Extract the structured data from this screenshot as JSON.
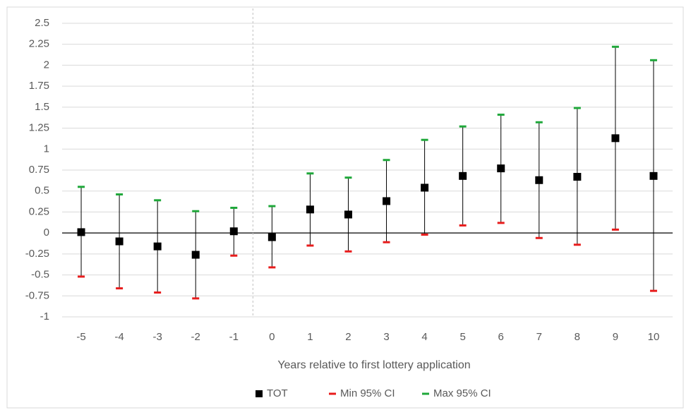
{
  "chart_data": {
    "type": "errorbar",
    "x_label": "Years relative to first lottery application",
    "categories": [
      "-5",
      "-4",
      "-3",
      "-2",
      "-1",
      "0",
      "1",
      "2",
      "3",
      "4",
      "5",
      "6",
      "7",
      "8",
      "9",
      "10"
    ],
    "series": [
      {
        "name": "TOT",
        "color": "#000000",
        "values": [
          0.01,
          -0.1,
          -0.16,
          -0.26,
          0.02,
          -0.05,
          0.28,
          0.22,
          0.38,
          0.54,
          0.68,
          0.77,
          0.63,
          0.67,
          1.13,
          0.68
        ]
      },
      {
        "name": "Min 95% CI",
        "color": "#e81c1c",
        "values": [
          -0.52,
          -0.66,
          -0.71,
          -0.78,
          -0.27,
          -0.41,
          -0.15,
          -0.22,
          -0.11,
          -0.02,
          0.09,
          0.12,
          -0.06,
          -0.14,
          0.04,
          -0.69
        ]
      },
      {
        "name": "Max 95% CI",
        "color": "#1fa83a",
        "values": [
          0.55,
          0.46,
          0.39,
          0.26,
          0.3,
          0.32,
          0.71,
          0.66,
          0.87,
          1.11,
          1.27,
          1.41,
          1.32,
          1.49,
          2.22,
          2.06
        ]
      }
    ],
    "ylim": [
      -1,
      2.5
    ],
    "yticks": [
      2.5,
      2.25,
      2,
      1.75,
      1.5,
      1.25,
      1,
      0.75,
      0.5,
      0.25,
      0,
      -0.25,
      -0.5,
      -0.75,
      -1
    ],
    "grid": true
  }
}
